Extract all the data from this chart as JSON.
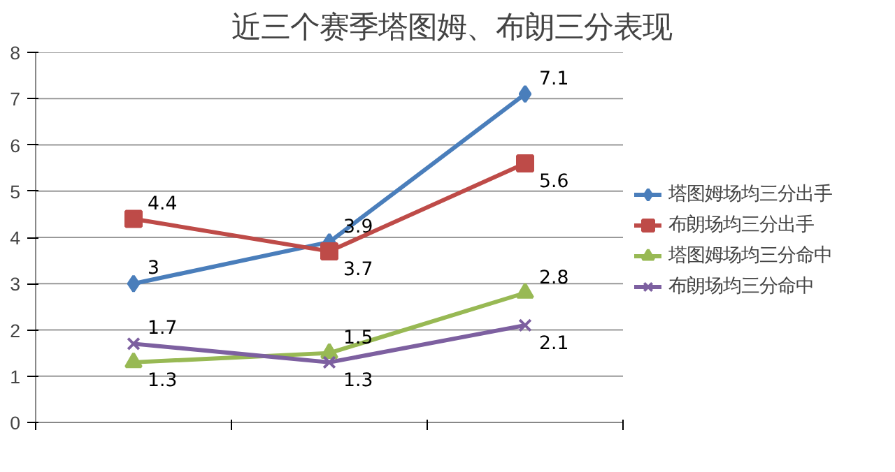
{
  "chart_data": {
    "type": "line",
    "title": "近三个赛季塔图姆、布朗三分表现",
    "categories": [
      null,
      null,
      null
    ],
    "series": [
      {
        "name": "塔图姆场均三分出手",
        "color": "#4a7ebb",
        "values": [
          3,
          3.9,
          7.1
        ],
        "marker": "diamond"
      },
      {
        "name": "布朗场均三分出手",
        "color": "#be4b48",
        "values": [
          4.4,
          3.7,
          5.6
        ],
        "marker": "square"
      },
      {
        "name": "塔图姆场均三分命中",
        "color": "#98b954",
        "values": [
          1.3,
          1.5,
          2.8
        ],
        "marker": "triangle"
      },
      {
        "name": "布朗场均三分命中",
        "color": "#7d60a0",
        "values": [
          1.7,
          1.3,
          2.1
        ],
        "marker": "cross"
      }
    ],
    "ylim": [
      0,
      8
    ],
    "yticks": [
      0,
      1,
      2,
      3,
      4,
      5,
      6,
      7,
      8
    ],
    "grid": "y",
    "legend": "right",
    "data_labels": true,
    "tick_labels": "y"
  }
}
